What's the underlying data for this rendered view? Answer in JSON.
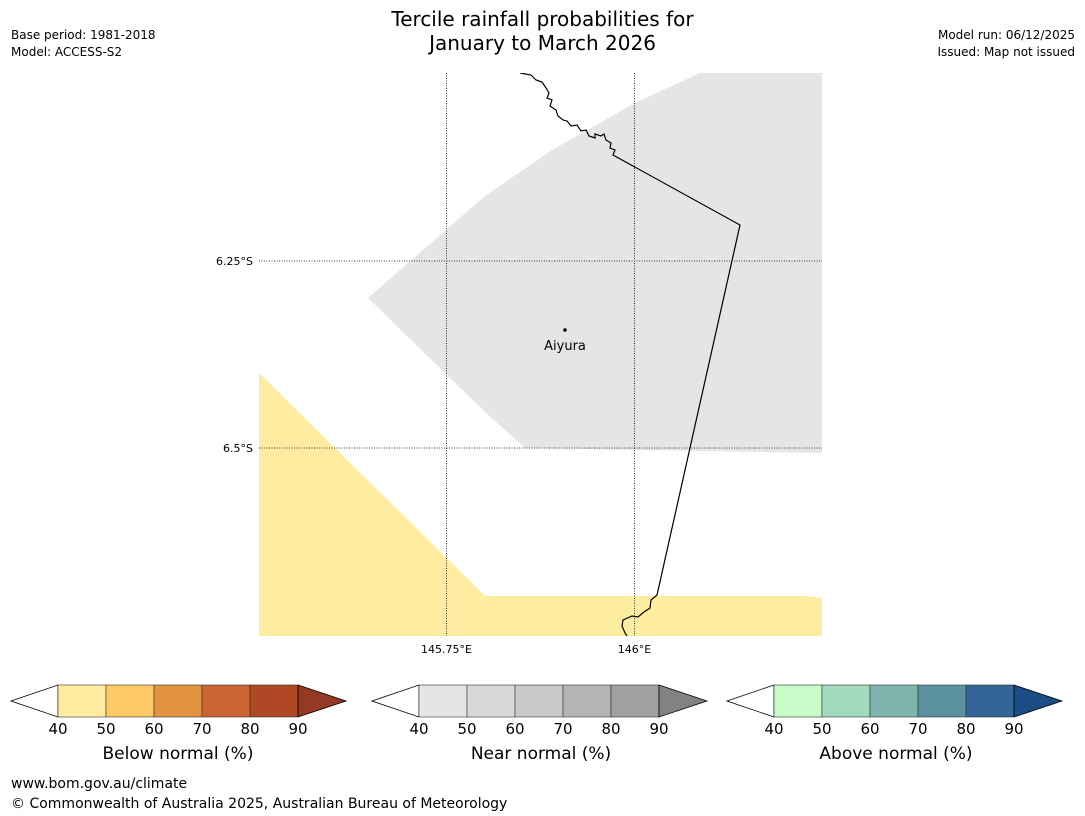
{
  "title": {
    "line1": "Tercile rainfall probabilities for",
    "line2": "January to March 2026"
  },
  "info_left": {
    "base_period": "Base period: 1981-2018",
    "model": "Model: ACCESS-S2"
  },
  "info_right": {
    "model_run": "Model run: 06/12/2025",
    "issued": "Issued: Map not issued"
  },
  "map": {
    "lat_labels": [
      "6.25°S",
      "6.5°S"
    ],
    "lon_labels": [
      "145.75°E",
      "146°E"
    ],
    "place": "Aiyura",
    "colors": {
      "near_normal_region": "#e5e5e5",
      "below_normal_region": "#feeda0",
      "boundary": "#000000"
    }
  },
  "colorbars": [
    {
      "label": "Below normal (%)",
      "ticks": [
        "40",
        "50",
        "60",
        "70",
        "80",
        "90"
      ],
      "colors": [
        "#feeda0",
        "#fec965",
        "#e1933f",
        "#cb6432",
        "#ae4825",
        "#943a24"
      ]
    },
    {
      "label": "Near normal (%)",
      "ticks": [
        "40",
        "50",
        "60",
        "70",
        "80",
        "90"
      ],
      "colors": [
        "#e5e5e5",
        "#d8d8d8",
        "#c9c9c9",
        "#b4b4b4",
        "#a0a0a0",
        "#828282"
      ]
    },
    {
      "label": "Above normal (%)",
      "ticks": [
        "40",
        "50",
        "60",
        "70",
        "80",
        "90"
      ],
      "colors": [
        "#c7fcc8",
        "#a3d9bc",
        "#7fb5ae",
        "#5b919f",
        "#326496",
        "#1b4c83"
      ]
    }
  ],
  "footer": {
    "url": "www.bom.gov.au/climate",
    "copyright": "© Commonwealth of Australia 2025, Australian Bureau of Meteorology"
  }
}
